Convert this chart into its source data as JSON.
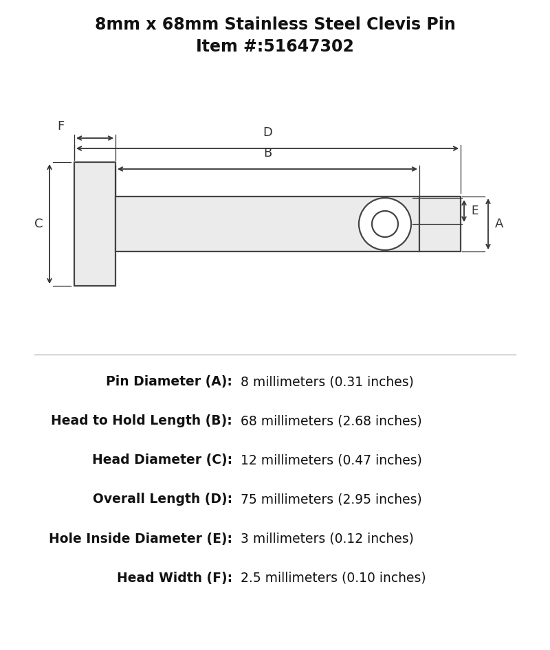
{
  "title_line1": "8mm x 68mm Stainless Steel Clevis Pin",
  "title_line2": "Item #:51647302",
  "title_fontsize": 17,
  "subtitle_fontsize": 17,
  "bg_color": "#ffffff",
  "line_color": "#444444",
  "dim_color": "#333333",
  "specs": [
    {
      "label": "Pin Diameter (A):",
      "value": "8 millimeters (0.31 inches)"
    },
    {
      "label": "Head to Hold Length (B):",
      "value": "68 millimeters (2.68 inches)"
    },
    {
      "label": "Head Diameter (C):",
      "value": "12 millimeters (0.47 inches)"
    },
    {
      "label": "Overall Length (D):",
      "value": "75 millimeters (2.95 inches)"
    },
    {
      "label": "Hole Inside Diameter (E):",
      "value": "3 millimeters (0.12 inches)"
    },
    {
      "label": "Head Width (F):",
      "value": "2.5 millimeters (0.10 inches)"
    }
  ],
  "spec_label_fontsize": 13.5,
  "spec_value_fontsize": 13.5,
  "fig_width": 8.0,
  "fig_height": 9.46,
  "dpi": 100
}
